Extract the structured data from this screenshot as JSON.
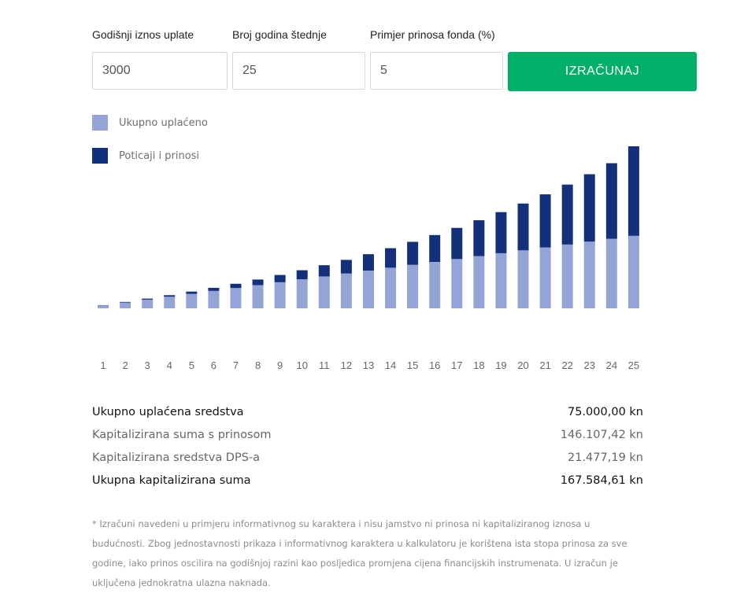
{
  "form": {
    "fields": [
      {
        "label": "Godišnji iznos uplate",
        "value": "3000"
      },
      {
        "label": "Broj godina štednje",
        "value": "25"
      },
      {
        "label": "Primjer prinosa fonda (%)",
        "value": "5"
      }
    ],
    "button_label": "IZRAČUNAJ",
    "button_color": "#00b068"
  },
  "legend": [
    {
      "label": "Ukupno uplaćeno",
      "color": "#95a4d6"
    },
    {
      "label": "Poticaji i prinosi",
      "color": "#13307a"
    }
  ],
  "chart_data": {
    "type": "bar",
    "stacked": true,
    "categories": [
      "1",
      "2",
      "3",
      "4",
      "5",
      "6",
      "7",
      "8",
      "9",
      "10",
      "11",
      "12",
      "13",
      "14",
      "15",
      "16",
      "17",
      "18",
      "19",
      "20",
      "21",
      "22",
      "23",
      "24",
      "25"
    ],
    "series": [
      {
        "name": "Ukupno uplaćeno",
        "color": "#95a4d6",
        "values": [
          3000,
          6000,
          9000,
          12000,
          15000,
          18000,
          21000,
          24000,
          27000,
          30000,
          33000,
          36000,
          39000,
          42000,
          45000,
          48000,
          51000,
          54000,
          57000,
          60000,
          63000,
          66000,
          69000,
          72000,
          75000
        ]
      },
      {
        "name": "Poticaji i prinosi",
        "color": "#13307a",
        "values": [
          300,
          650,
          1050,
          1600,
          2300,
          3200,
          4400,
          5800,
          7500,
          9400,
          11600,
          14100,
          17000,
          20200,
          23800,
          27800,
          32200,
          37100,
          42500,
          48400,
          54900,
          62000,
          69700,
          78100,
          92600
        ]
      }
    ],
    "grid": false,
    "legend_position": "top-left"
  },
  "summary": [
    {
      "label": "Ukupno uplaćena sredstva",
      "value": "75.000,00 kn",
      "emphasis": true
    },
    {
      "label": "Kapitalizirana suma s prinosom",
      "value": "146.107,42 kn",
      "emphasis": false
    },
    {
      "label": "Kapitalizirana sredstva DPS-a",
      "value": "21.477,19 kn",
      "emphasis": false
    },
    {
      "label": "Ukupna kapitalizirana suma",
      "value": "167.584,61 kn",
      "emphasis": true
    }
  ],
  "disclaimer": "* Izračuni navedeni u primjeru informativnog su karaktera i nisu jamstvo ni prinosa ni kapitaliziranog iznosa u budućnosti. Zbog jednostavnosti prikaza i informativnog karaktera u kalkulatoru je korištena ista stopa prinosa za sve godine, iako prinos oscilira na godišnjoj razini kao posljedica promjena cijena financijskih instrumenata. U izračun je uključena jednokratna ulazna naknada."
}
